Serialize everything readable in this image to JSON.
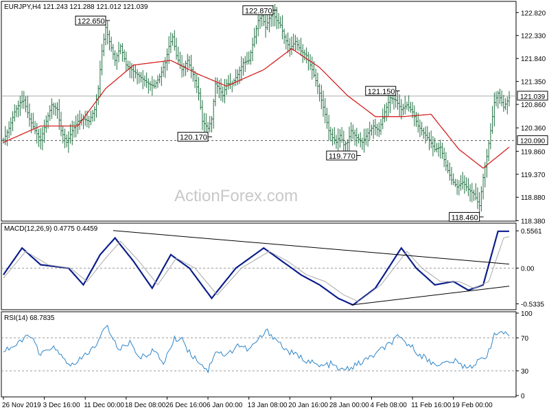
{
  "header": {
    "main": "EURJPY,H4  121.243 121.288 121.012 121.039",
    "macd": "MACD(12,26,9) 0.4775 0.4459",
    "rsi": "RSI(14) 68.7835"
  },
  "watermark": "ActionForex.com",
  "colors": {
    "bars": "#1e6f40",
    "ma": "#d42020",
    "macd_main": "#0a1e8c",
    "macd_signal": "#a8a8a8",
    "rsi": "#2c84c8",
    "grid": "#000000",
    "box_text": "#0a1e8c"
  },
  "chart_data": [
    {
      "type": "bar",
      "panel": "price",
      "symbol": "EURJPY",
      "timeframe": "H4",
      "ohlc_last": {
        "open": 121.243,
        "high": 121.288,
        "low": 121.012,
        "close": 121.039
      },
      "ylim": [
        118.4,
        123.0
      ],
      "y_ticks": [
        "122.820",
        "122.330",
        "121.840",
        "121.350",
        "120.860",
        "120.360",
        "119.860",
        "119.370",
        "118.880",
        "118.380"
      ],
      "horizontal_levels": [
        {
          "value": 121.039,
          "label": "121.039",
          "style": "solid"
        },
        {
          "value": 120.09,
          "label": "120.090",
          "style": "dashed"
        }
      ],
      "annotations": [
        {
          "label": "122.650",
          "value": 122.65
        },
        {
          "label": "122.870",
          "value": 122.87
        },
        {
          "label": "120.170",
          "value": 120.17
        },
        {
          "label": "121.150",
          "value": 121.15
        },
        {
          "label": "119.770",
          "value": 119.77
        },
        {
          "label": "118.460",
          "value": 118.46
        }
      ],
      "close_path": [
        [
          0,
          120.1
        ],
        [
          3,
          120.35
        ],
        [
          6,
          120.7
        ],
        [
          9,
          120.9
        ],
        [
          11,
          120.95
        ],
        [
          14,
          120.55
        ],
        [
          17,
          120.3
        ],
        [
          20,
          120.1
        ],
        [
          23,
          120.5
        ],
        [
          26,
          120.85
        ],
        [
          29,
          120.75
        ],
        [
          31,
          120.3
        ],
        [
          34,
          120.05
        ],
        [
          37,
          120.3
        ],
        [
          40,
          120.5
        ],
        [
          43,
          120.55
        ],
        [
          46,
          120.5
        ],
        [
          49,
          120.75
        ],
        [
          51,
          121.2
        ],
        [
          53,
          122.0
        ],
        [
          55,
          122.5
        ],
        [
          57,
          122.2
        ],
        [
          60,
          121.8
        ],
        [
          63,
          122.1
        ],
        [
          66,
          121.7
        ],
        [
          69,
          121.6
        ],
        [
          72,
          121.5
        ],
        [
          75,
          121.4
        ],
        [
          78,
          121.3
        ],
        [
          81,
          121.25
        ],
        [
          84,
          121.45
        ],
        [
          87,
          121.75
        ],
        [
          89,
          122.1
        ],
        [
          91,
          122.3
        ],
        [
          93,
          121.9
        ],
        [
          96,
          121.6
        ],
        [
          99,
          121.8
        ],
        [
          102,
          121.5
        ],
        [
          105,
          121.1
        ],
        [
          107,
          120.5
        ],
        [
          110,
          120.35
        ],
        [
          112,
          120.55
        ],
        [
          114,
          121.3
        ],
        [
          116,
          121.2
        ],
        [
          118,
          121.05
        ],
        [
          120,
          121.3
        ],
        [
          123,
          121.3
        ],
        [
          126,
          121.5
        ],
        [
          129,
          121.75
        ],
        [
          132,
          121.8
        ],
        [
          135,
          122.3
        ],
        [
          137,
          122.65
        ],
        [
          139,
          122.75
        ],
        [
          141,
          122.5
        ],
        [
          143,
          122.7
        ],
        [
          145,
          122.8
        ],
        [
          147,
          122.65
        ],
        [
          149,
          122.55
        ],
        [
          151,
          122.3
        ],
        [
          154,
          122.05
        ],
        [
          157,
          122.2
        ],
        [
          160,
          122.0
        ],
        [
          163,
          121.9
        ],
        [
          166,
          121.6
        ],
        [
          169,
          121.25
        ],
        [
          171,
          120.95
        ],
        [
          173,
          120.65
        ],
        [
          175,
          120.3
        ],
        [
          177,
          120.15
        ],
        [
          179,
          120.05
        ],
        [
          181,
          120.2
        ],
        [
          183,
          120.0
        ],
        [
          185,
          120.05
        ],
        [
          187,
          120.3
        ],
        [
          190,
          120.15
        ],
        [
          193,
          120.05
        ],
        [
          196,
          120.25
        ],
        [
          199,
          120.4
        ],
        [
          202,
          120.3
        ],
        [
          205,
          120.7
        ],
        [
          208,
          121.0
        ],
        [
          211,
          120.95
        ],
        [
          214,
          120.75
        ],
        [
          217,
          120.85
        ],
        [
          220,
          120.7
        ],
        [
          223,
          120.4
        ],
        [
          226,
          120.25
        ],
        [
          229,
          120.1
        ],
        [
          232,
          119.9
        ],
        [
          235,
          119.95
        ],
        [
          238,
          119.55
        ],
        [
          241,
          119.25
        ],
        [
          244,
          119.1
        ],
        [
          247,
          119.2
        ],
        [
          250,
          119.05
        ],
        [
          253,
          118.95
        ],
        [
          256,
          118.7
        ],
        [
          258,
          119.3
        ],
        [
          260,
          119.75
        ],
        [
          262,
          120.3
        ],
        [
          264,
          120.9
        ],
        [
          266,
          121.1
        ],
        [
          269,
          120.8
        ],
        [
          272,
          121.0
        ]
      ],
      "moving_average": [
        [
          0,
          120.05
        ],
        [
          20,
          120.4
        ],
        [
          40,
          120.4
        ],
        [
          55,
          121.2
        ],
        [
          70,
          121.7
        ],
        [
          90,
          121.8
        ],
        [
          105,
          121.5
        ],
        [
          120,
          121.25
        ],
        [
          140,
          121.6
        ],
        [
          155,
          122.05
        ],
        [
          170,
          121.65
        ],
        [
          185,
          121.05
        ],
        [
          200,
          120.6
        ],
        [
          215,
          120.6
        ],
        [
          230,
          120.65
        ],
        [
          245,
          119.9
        ],
        [
          258,
          119.5
        ],
        [
          272,
          119.95
        ]
      ]
    },
    {
      "type": "line",
      "panel": "macd",
      "ylim": [
        -0.6,
        0.65
      ],
      "y_ticks": [
        "0.5561",
        "0.00",
        "-0.5335"
      ],
      "series": [
        {
          "name": "MACD(12,26,9)",
          "values": [
            [
              0,
              -0.1
            ],
            [
              10,
              0.3
            ],
            [
              20,
              0.05
            ],
            [
              35,
              0.0
            ],
            [
              43,
              -0.25
            ],
            [
              52,
              0.2
            ],
            [
              60,
              0.45
            ],
            [
              70,
              0.1
            ],
            [
              80,
              -0.3
            ],
            [
              90,
              0.2
            ],
            [
              100,
              0.0
            ],
            [
              112,
              -0.45
            ],
            [
              125,
              0.0
            ],
            [
              140,
              0.3
            ],
            [
              150,
              0.1
            ],
            [
              160,
              -0.1
            ],
            [
              170,
              -0.25
            ],
            [
              180,
              -0.45
            ],
            [
              188,
              -0.55
            ],
            [
              200,
              -0.3
            ],
            [
              214,
              0.3
            ],
            [
              222,
              0.0
            ],
            [
              232,
              -0.25
            ],
            [
              242,
              -0.2
            ],
            [
              250,
              -0.33
            ],
            [
              258,
              -0.25
            ],
            [
              266,
              0.55
            ],
            [
              272,
              0.55
            ]
          ]
        },
        {
          "name": "Signal",
          "values": [
            [
              0,
              -0.15
            ],
            [
              12,
              0.25
            ],
            [
              24,
              0.05
            ],
            [
              36,
              0.0
            ],
            [
              45,
              -0.2
            ],
            [
              55,
              0.15
            ],
            [
              63,
              0.4
            ],
            [
              73,
              0.1
            ],
            [
              83,
              -0.25
            ],
            [
              93,
              0.15
            ],
            [
              103,
              0.0
            ],
            [
              115,
              -0.4
            ],
            [
              128,
              0.0
            ],
            [
              143,
              0.25
            ],
            [
              153,
              0.1
            ],
            [
              163,
              -0.1
            ],
            [
              173,
              -0.2
            ],
            [
              183,
              -0.4
            ],
            [
              191,
              -0.5
            ],
            [
              203,
              -0.25
            ],
            [
              217,
              0.25
            ],
            [
              225,
              0.0
            ],
            [
              235,
              -0.2
            ],
            [
              245,
              -0.2
            ],
            [
              253,
              -0.3
            ],
            [
              261,
              -0.2
            ],
            [
              269,
              0.45
            ],
            [
              272,
              0.47
            ]
          ]
        }
      ],
      "trendlines": [
        {
          "from": [
            59,
            0.56
          ],
          "to": [
            272,
            0.06
          ]
        },
        {
          "from": [
            187,
            -0.55
          ],
          "to": [
            272,
            -0.27
          ]
        }
      ]
    },
    {
      "type": "line",
      "panel": "rsi",
      "ylim": [
        0,
        100
      ],
      "y_ticks": [
        "100",
        "70",
        "30",
        "0"
      ],
      "levels": [
        70,
        30
      ],
      "series": [
        {
          "name": "RSI(14)",
          "values": [
            [
              0,
              55
            ],
            [
              8,
              62
            ],
            [
              14,
              75
            ],
            [
              20,
              48
            ],
            [
              26,
              60
            ],
            [
              32,
              45
            ],
            [
              38,
              35
            ],
            [
              44,
              50
            ],
            [
              50,
              60
            ],
            [
              55,
              85
            ],
            [
              58,
              75
            ],
            [
              62,
              55
            ],
            [
              68,
              65
            ],
            [
              74,
              45
            ],
            [
              80,
              55
            ],
            [
              86,
              40
            ],
            [
              92,
              68
            ],
            [
              96,
              70
            ],
            [
              100,
              52
            ],
            [
              106,
              40
            ],
            [
              110,
              30
            ],
            [
              114,
              55
            ],
            [
              120,
              48
            ],
            [
              126,
              62
            ],
            [
              132,
              55
            ],
            [
              138,
              70
            ],
            [
              142,
              78
            ],
            [
              146,
              70
            ],
            [
              152,
              55
            ],
            [
              158,
              48
            ],
            [
              164,
              42
            ],
            [
              170,
              35
            ],
            [
              176,
              38
            ],
            [
              182,
              30
            ],
            [
              188,
              35
            ],
            [
              194,
              42
            ],
            [
              200,
              50
            ],
            [
              206,
              60
            ],
            [
              212,
              70
            ],
            [
              218,
              62
            ],
            [
              224,
              50
            ],
            [
              230,
              40
            ],
            [
              236,
              38
            ],
            [
              242,
              42
            ],
            [
              248,
              35
            ],
            [
              254,
              38
            ],
            [
              260,
              50
            ],
            [
              264,
              72
            ],
            [
              268,
              78
            ],
            [
              272,
              69
            ]
          ]
        }
      ]
    }
  ],
  "x_axis": {
    "labels": [
      "26 Nov 2019",
      "3 Dec 16:00",
      "11 Dec 00:00",
      "18 Dec 08:00",
      "26 Dec 16:00",
      "6 Jan 00:00",
      "13 Jan 08:00",
      "20 Jan 16:00",
      "28 Jan 00:00",
      "4 Feb 08:00",
      "11 Feb 16:00",
      "19 Feb 00:00"
    ],
    "positions": [
      0,
      22,
      44,
      66,
      88,
      110,
      132,
      154,
      176,
      198,
      220,
      242
    ]
  }
}
